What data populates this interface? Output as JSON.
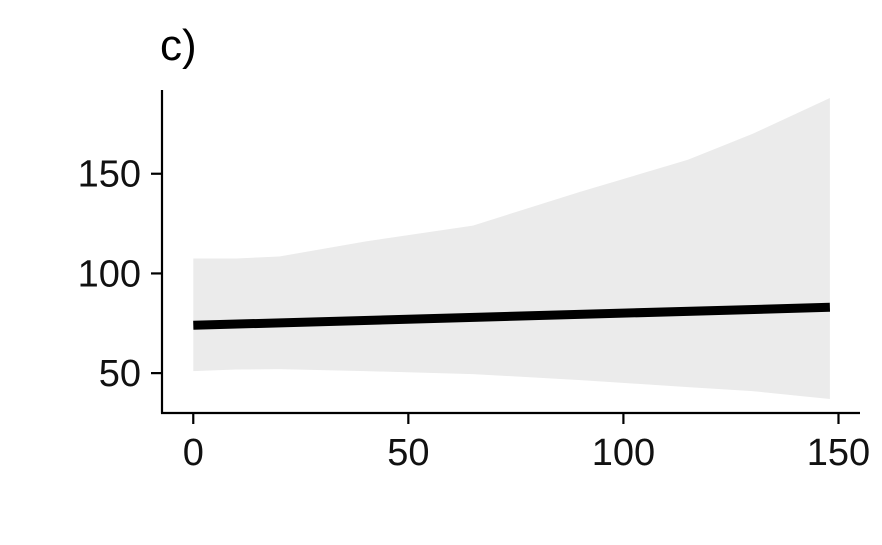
{
  "chart_data": {
    "type": "line",
    "panel_label": "c)",
    "title": "",
    "xlabel": "",
    "ylabel": "",
    "xlim": [
      -7.5,
      155
    ],
    "ylim": [
      30,
      192
    ],
    "x_ticks": [
      0,
      50,
      100,
      150
    ],
    "y_ticks": [
      50,
      100,
      150
    ],
    "x_tick_labels": [
      "0",
      "50",
      "100",
      "150"
    ],
    "y_tick_labels": [
      "50",
      "100",
      "150"
    ],
    "grid": false,
    "legend": "none",
    "series": [
      {
        "x": [
          0,
          148
        ],
        "y": [
          74,
          83
        ]
      }
    ],
    "ribbon": {
      "x": [
        0,
        10,
        20,
        40,
        65,
        90,
        115,
        130,
        148
      ],
      "lower": [
        51,
        51.8,
        52,
        51,
        49.5,
        46.5,
        43,
        41,
        37
      ],
      "upper": [
        107.5,
        107.5,
        108.5,
        116,
        124,
        141,
        157,
        170,
        188
      ]
    },
    "colors": {
      "line": "#000000",
      "ribbon": "#ebebeb",
      "axis": "#000000"
    }
  }
}
